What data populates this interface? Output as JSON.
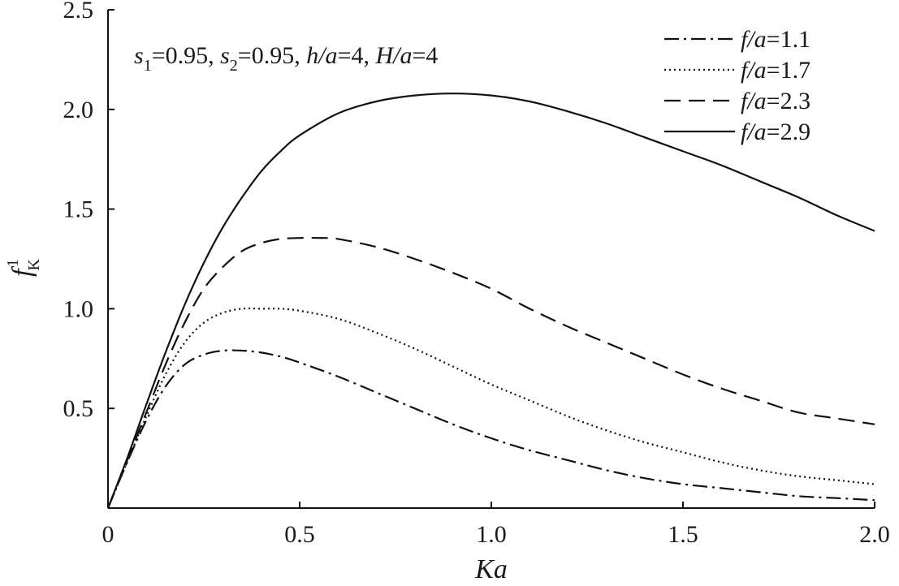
{
  "chart_data": {
    "type": "line",
    "xlabel": "Ka",
    "ylabel": {
      "main": "f",
      "subscript": "K",
      "superscript": "1"
    },
    "annotation": {
      "s1_sym": "s",
      "s1_sub": "1",
      "s1_val": "=0.95, ",
      "s2_sym": "s",
      "s2_sub": "2",
      "s2_val": "=0.95, ",
      "h_sym": "h/a",
      "h_val": "=4, ",
      "H_sym": "H/a",
      "H_val": "=4"
    },
    "xlim": [
      0,
      2.0
    ],
    "ylim": [
      0,
      2.5
    ],
    "x_ticks": [
      {
        "value": 0,
        "label": "0"
      },
      {
        "value": 0.5,
        "label": "0.5"
      },
      {
        "value": 1.0,
        "label": "1.0"
      },
      {
        "value": 1.5,
        "label": "1.5"
      },
      {
        "value": 2.0,
        "label": "2.0"
      }
    ],
    "y_ticks": [
      {
        "value": 0.5,
        "label": "0.5"
      },
      {
        "value": 1.0,
        "label": "1.0"
      },
      {
        "value": 1.5,
        "label": "1.5"
      },
      {
        "value": 2.0,
        "label": "2.0"
      },
      {
        "value": 2.5,
        "label": "2.5"
      }
    ],
    "grid": false,
    "legend_position": "top-right",
    "series": [
      {
        "name": "f/a=1.1",
        "legend_symbol": "f/a",
        "legend_value": "=1.1",
        "style": "dashdot",
        "x": [
          0,
          0.05,
          0.1,
          0.15,
          0.2,
          0.25,
          0.3,
          0.35,
          0.4,
          0.45,
          0.5,
          0.6,
          0.7,
          0.8,
          0.9,
          1.0,
          1.1,
          1.2,
          1.3,
          1.4,
          1.5,
          1.6,
          1.7,
          1.8,
          1.9,
          2.0
        ],
        "y": [
          0,
          0.23,
          0.44,
          0.61,
          0.72,
          0.77,
          0.79,
          0.79,
          0.78,
          0.76,
          0.73,
          0.66,
          0.58,
          0.5,
          0.42,
          0.35,
          0.29,
          0.24,
          0.19,
          0.15,
          0.12,
          0.1,
          0.08,
          0.06,
          0.05,
          0.04
        ]
      },
      {
        "name": "f/a=1.7",
        "legend_symbol": "f/a",
        "legend_value": "=1.7",
        "style": "dotted",
        "x": [
          0,
          0.05,
          0.1,
          0.15,
          0.2,
          0.25,
          0.3,
          0.35,
          0.4,
          0.45,
          0.5,
          0.6,
          0.7,
          0.8,
          0.9,
          1.0,
          1.1,
          1.2,
          1.3,
          1.4,
          1.5,
          1.6,
          1.7,
          1.8,
          1.9,
          2.0
        ],
        "y": [
          0,
          0.23,
          0.46,
          0.67,
          0.83,
          0.93,
          0.98,
          1.0,
          1.0,
          1.0,
          0.99,
          0.95,
          0.88,
          0.8,
          0.71,
          0.62,
          0.54,
          0.46,
          0.39,
          0.33,
          0.28,
          0.23,
          0.19,
          0.16,
          0.14,
          0.12
        ]
      },
      {
        "name": "f/a=2.3",
        "legend_symbol": "f/a",
        "legend_value": "=2.3",
        "style": "dashed",
        "x": [
          0,
          0.05,
          0.1,
          0.15,
          0.2,
          0.25,
          0.3,
          0.35,
          0.4,
          0.45,
          0.5,
          0.55,
          0.6,
          0.7,
          0.8,
          0.9,
          1.0,
          1.1,
          1.2,
          1.3,
          1.4,
          1.5,
          1.6,
          1.7,
          1.8,
          1.9,
          2.0
        ],
        "y": [
          0,
          0.24,
          0.48,
          0.72,
          0.93,
          1.1,
          1.21,
          1.29,
          1.33,
          1.35,
          1.355,
          1.355,
          1.35,
          1.31,
          1.25,
          1.18,
          1.1,
          1.0,
          0.91,
          0.83,
          0.75,
          0.67,
          0.6,
          0.54,
          0.48,
          0.45,
          0.42
        ]
      },
      {
        "name": "f/a=2.9",
        "legend_symbol": "f/a",
        "legend_value": "=2.9",
        "style": "solid",
        "x": [
          0,
          0.05,
          0.1,
          0.15,
          0.2,
          0.25,
          0.3,
          0.35,
          0.4,
          0.45,
          0.5,
          0.6,
          0.7,
          0.8,
          0.9,
          1.0,
          1.1,
          1.2,
          1.3,
          1.4,
          1.5,
          1.6,
          1.7,
          1.8,
          1.9,
          2.0
        ],
        "y": [
          0,
          0.25,
          0.52,
          0.78,
          1.02,
          1.23,
          1.41,
          1.56,
          1.69,
          1.79,
          1.87,
          1.98,
          2.04,
          2.07,
          2.08,
          2.07,
          2.04,
          1.99,
          1.93,
          1.86,
          1.79,
          1.72,
          1.64,
          1.56,
          1.47,
          1.39
        ]
      }
    ]
  }
}
